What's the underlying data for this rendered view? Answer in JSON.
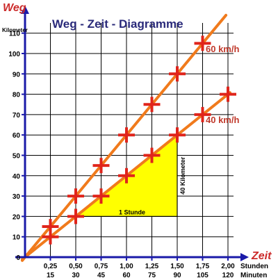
{
  "chart_data": {
    "type": "line",
    "title": "Weg - Zeit - Diagramme",
    "ylabel": "Weg",
    "yunit": "Kilometer",
    "xlabel": "Zeit",
    "xunit_primary": "Stunden",
    "xunit_secondary": "Minuten",
    "xlim": [
      0,
      2.0
    ],
    "ylim": [
      0,
      115
    ],
    "grid": true,
    "x_ticks": [
      "0,25",
      "0,50",
      "0,75",
      "1,00",
      "1,25",
      "1,50",
      "1,75",
      "2,00"
    ],
    "x_ticks_minutes": [
      "15",
      "30",
      "45",
      "60",
      "75",
      "90",
      "105",
      "120"
    ],
    "y_ticks": [
      "0",
      "10",
      "20",
      "30",
      "40",
      "50",
      "60",
      "70",
      "80",
      "90",
      "100",
      "110"
    ],
    "series": [
      {
        "name": "60 km/h",
        "x": [
          0.25,
          0.5,
          0.75,
          1.0,
          1.25,
          1.5,
          1.75
        ],
        "y": [
          15,
          30,
          45,
          60,
          75,
          90,
          105
        ]
      },
      {
        "name": "40 km/h",
        "x": [
          0.25,
          0.5,
          0.75,
          1.0,
          1.25,
          1.5,
          1.75,
          2.0
        ],
        "y": [
          10,
          20,
          30,
          40,
          50,
          60,
          70,
          80
        ]
      }
    ],
    "triangle": {
      "x": [
        0.5,
        1.5
      ],
      "y": [
        20,
        60
      ],
      "label_horizontal": "1 Stunde",
      "label_vertical": "40 Kilometer"
    },
    "colors": {
      "line": "#f07a1c",
      "marker": "#e0241b",
      "triangle_fill": "#ffff00",
      "axis": "#1a1aa8",
      "axis_title": "#cc2b2b",
      "grid": "#000000"
    }
  }
}
